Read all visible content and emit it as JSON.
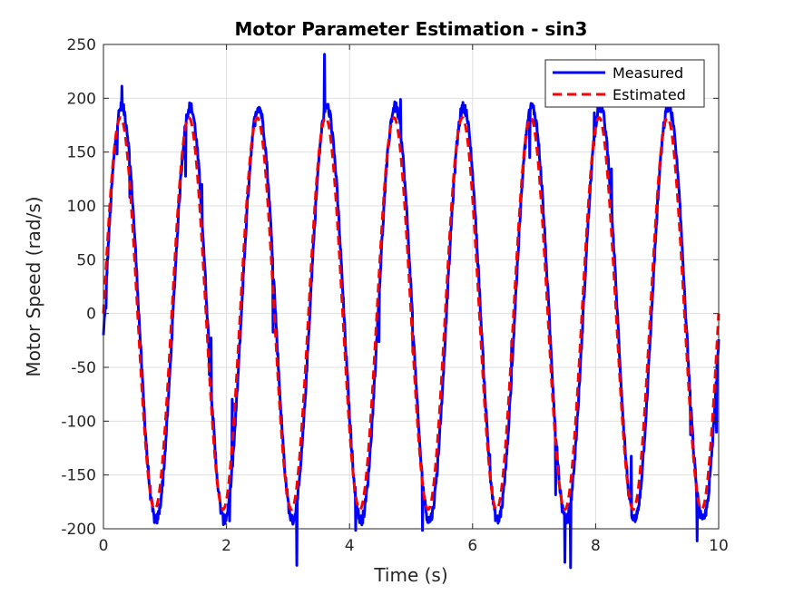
{
  "chart_data": {
    "type": "line",
    "title": "Motor Parameter Estimation - sin3",
    "xlabel": "Time (s)",
    "ylabel": "Motor Speed (rad/s)",
    "xlim": [
      0,
      10
    ],
    "ylim": [
      -200,
      250
    ],
    "xticks": [
      0,
      2,
      4,
      6,
      8,
      10
    ],
    "yticks": [
      -200,
      -150,
      -100,
      -50,
      0,
      50,
      100,
      150,
      200,
      250
    ],
    "grid": true,
    "legend_position": "top-right",
    "signal": {
      "shape": "sine",
      "frequency_hz": 0.9,
      "period_s": 1.111,
      "estimated_amplitude": 182,
      "measured_amplitude": 192,
      "t_start": 0,
      "t_end": 10
    },
    "series": [
      {
        "name": "Measured",
        "color": "#0000ff",
        "style": "solid",
        "peaks": [
          [
            0.28,
            195
          ],
          [
            1.38,
            193
          ],
          [
            2.52,
            195
          ],
          [
            3.63,
            196
          ],
          [
            4.73,
            198
          ],
          [
            5.85,
            199
          ],
          [
            6.95,
            197
          ],
          [
            8.05,
            197
          ],
          [
            9.15,
            198
          ]
        ],
        "troughs": [
          [
            0.92,
            -193
          ],
          [
            1.97,
            -197
          ],
          [
            3.08,
            -196
          ],
          [
            4.18,
            -196
          ],
          [
            5.3,
            -195
          ],
          [
            6.4,
            -197
          ],
          [
            7.52,
            -197
          ],
          [
            8.6,
            -197
          ],
          [
            9.72,
            -196
          ]
        ]
      },
      {
        "name": "Estimated",
        "color": "#ff0000",
        "style": "dashed",
        "peaks": [
          [
            0.28,
            182
          ],
          [
            1.39,
            182
          ],
          [
            2.5,
            182
          ],
          [
            3.61,
            182
          ],
          [
            4.72,
            182
          ],
          [
            5.83,
            182
          ],
          [
            6.94,
            182
          ],
          [
            8.06,
            182
          ],
          [
            9.17,
            182
          ]
        ],
        "troughs": [
          [
            0.83,
            -182
          ],
          [
            1.94,
            -182
          ],
          [
            3.06,
            -182
          ],
          [
            4.17,
            -182
          ],
          [
            5.28,
            -182
          ],
          [
            6.39,
            -182
          ],
          [
            7.5,
            -182
          ],
          [
            8.61,
            -182
          ],
          [
            9.72,
            -182
          ]
        ]
      }
    ]
  }
}
